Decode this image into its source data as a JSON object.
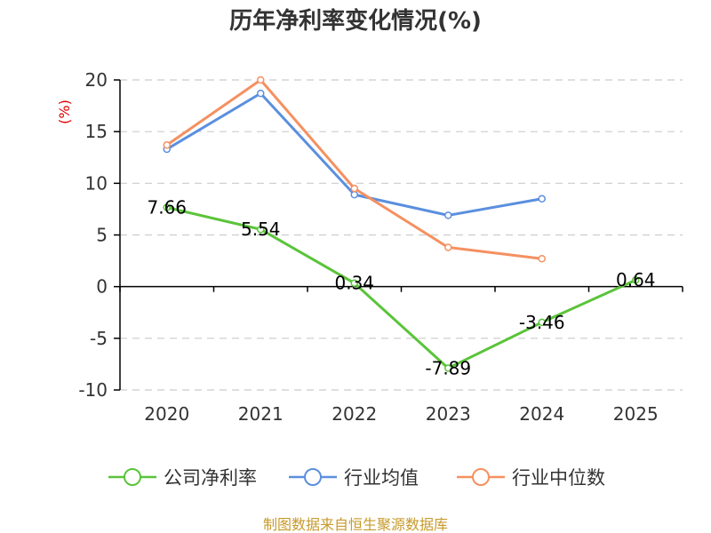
{
  "chart_data": {
    "type": "line",
    "title": "历年净利率变化情况(%)",
    "ylabel": "(%)",
    "xlabel": "",
    "categories": [
      "2020",
      "2021",
      "2022",
      "2023",
      "2024",
      "2025"
    ],
    "ylim": [
      -10,
      20
    ],
    "yticks": [
      20,
      15,
      10,
      5,
      0,
      -5,
      -10
    ],
    "grid": true,
    "legend_position": "bottom",
    "series": [
      {
        "name": "公司净利率",
        "color": "#5ac43a",
        "labeled": true,
        "values": [
          7.66,
          5.54,
          0.34,
          -7.89,
          -3.46,
          0.64
        ]
      },
      {
        "name": "行业均值",
        "color": "#5b8fdf",
        "labeled": false,
        "values": [
          13.3,
          18.7,
          8.9,
          6.9,
          8.5,
          null
        ]
      },
      {
        "name": "行业中位数",
        "color": "#f59060",
        "labeled": false,
        "values": [
          13.7,
          20.0,
          9.5,
          3.8,
          2.7,
          null
        ]
      }
    ]
  },
  "source_note": "制图数据来自恒生聚源数据库"
}
